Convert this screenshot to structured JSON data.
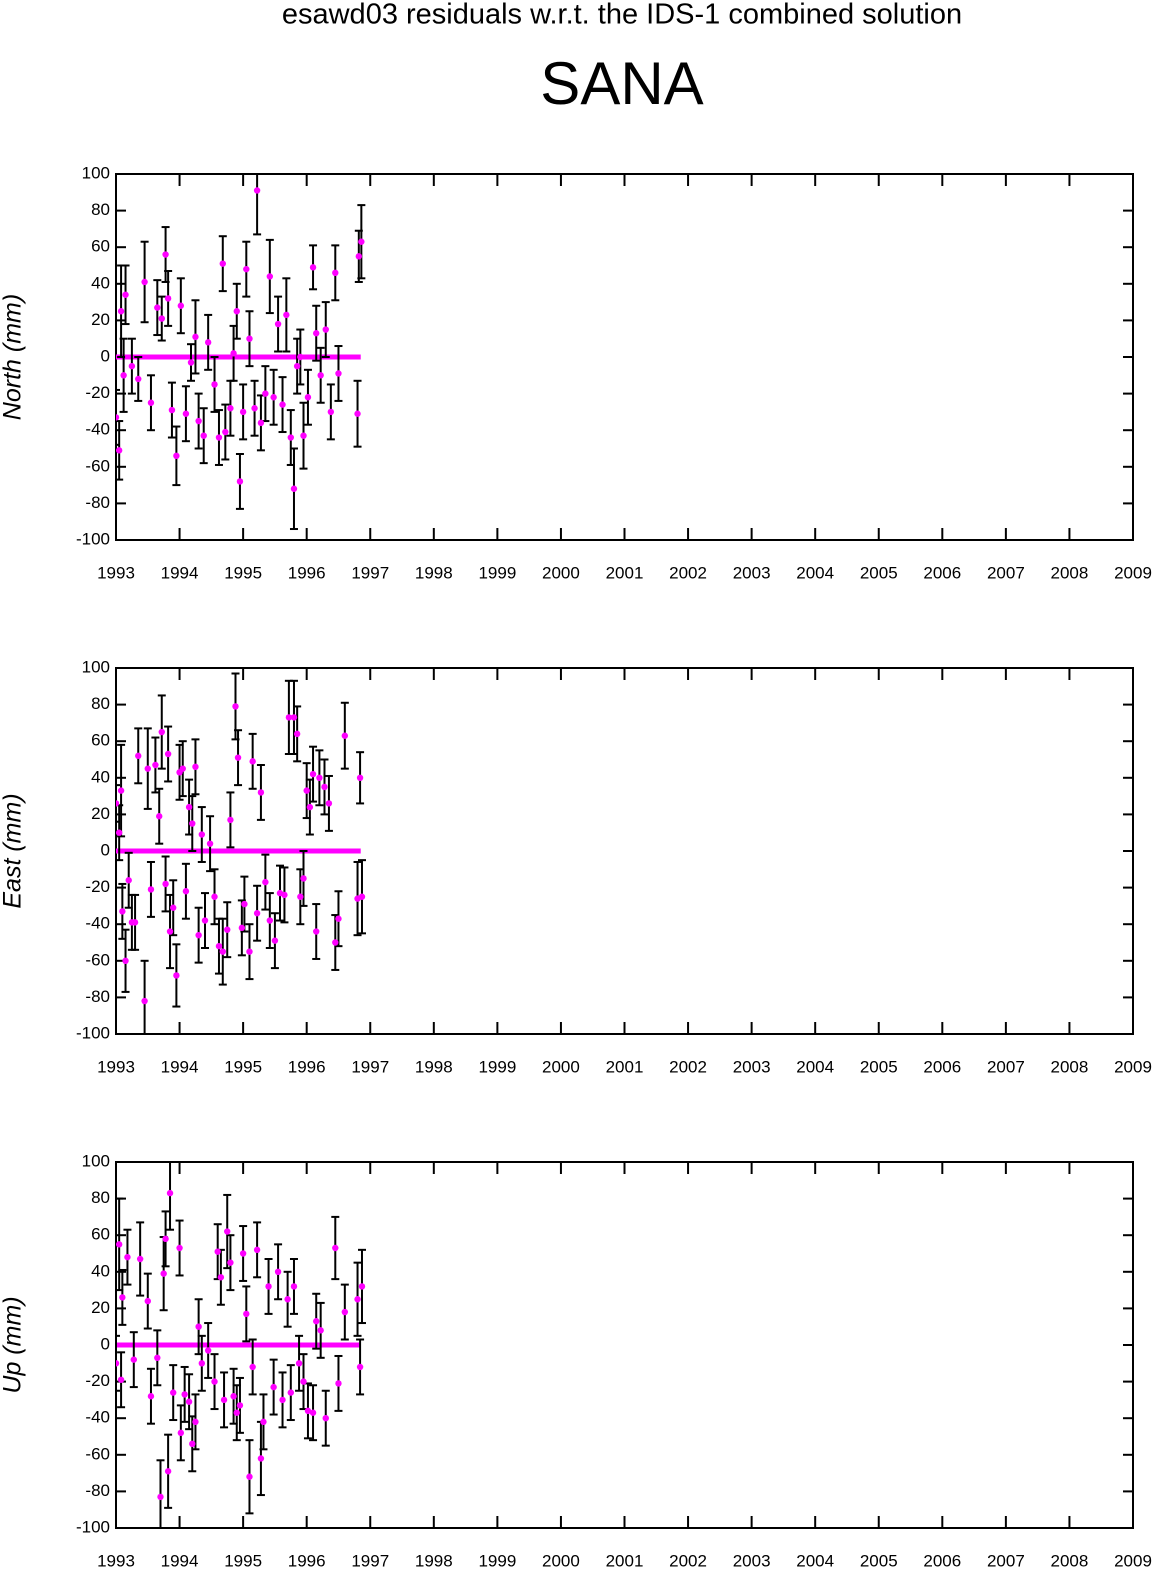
{
  "header": {
    "title": "esawd03 residuals w.r.t. the IDS-1 combined solution",
    "station": "SANA"
  },
  "chart_data": [
    {
      "type": "scatter",
      "ylabel": "North (mm)",
      "x": [
        1993.0,
        1993.05,
        1993.08,
        1993.12,
        1993.15,
        1993.25,
        1993.35,
        1993.45,
        1993.55,
        1993.65,
        1993.72,
        1993.78,
        1993.82,
        1993.88,
        1993.95,
        1994.02,
        1994.1,
        1994.18,
        1994.25,
        1994.3,
        1994.38,
        1994.45,
        1994.55,
        1994.62,
        1994.68,
        1994.72,
        1994.8,
        1994.85,
        1994.9,
        1994.95,
        1995.0,
        1995.05,
        1995.1,
        1995.18,
        1995.22,
        1995.28,
        1995.35,
        1995.42,
        1995.48,
        1995.55,
        1995.62,
        1995.68,
        1995.75,
        1995.8,
        1995.85,
        1995.9,
        1995.95,
        1996.02,
        1996.1,
        1996.15,
        1996.22,
        1996.3,
        1996.38,
        1996.45,
        1996.5,
        1996.8,
        1996.82,
        1996.86
      ],
      "series": [
        {
          "color": "#ff00ff",
          "values": [
            -33,
            -51,
            25,
            -10,
            34,
            -5,
            -12,
            41,
            -25,
            27,
            21,
            56,
            32,
            -29,
            -54,
            28,
            -31,
            -3,
            11,
            -35,
            -43,
            8,
            -15,
            -44,
            51,
            -41,
            -28,
            2,
            25,
            -68,
            -30,
            48,
            10,
            -28,
            91,
            -36,
            -20,
            44,
            -22,
            18,
            -26,
            23,
            -44,
            -72,
            -5,
            0,
            -43,
            -22,
            49,
            13,
            -10,
            15,
            -30,
            46,
            -9,
            -31,
            55,
            63
          ],
          "errors": [
            15,
            16,
            25,
            20,
            16,
            15,
            12,
            22,
            15,
            15,
            12,
            15,
            15,
            15,
            16,
            15,
            15,
            10,
            20,
            15,
            15,
            15,
            15,
            15,
            15,
            15,
            15,
            15,
            15,
            15,
            15,
            15,
            15,
            15,
            24,
            15,
            15,
            20,
            15,
            15,
            15,
            20,
            15,
            22,
            15,
            15,
            18,
            15,
            12,
            15,
            15,
            15,
            15,
            15,
            15,
            18,
            14,
            20
          ]
        }
      ],
      "baseline": {
        "x": [
          1993.0,
          1996.85
        ],
        "values": [
          0,
          0
        ]
      },
      "xlim": [
        1993,
        2009
      ],
      "ylim": [
        -100,
        100
      ],
      "xticks": [
        1993,
        1994,
        1995,
        1996,
        1997,
        1998,
        1999,
        2000,
        2001,
        2002,
        2003,
        2004,
        2005,
        2006,
        2007,
        2008,
        2009
      ],
      "yticks": [
        -100,
        -80,
        -60,
        -40,
        -20,
        0,
        20,
        40,
        60,
        80,
        100
      ]
    },
    {
      "type": "scatter",
      "ylabel": "East (mm)",
      "x": [
        1993.0,
        1993.05,
        1993.08,
        1993.1,
        1993.15,
        1993.2,
        1993.25,
        1993.3,
        1993.35,
        1993.45,
        1993.5,
        1993.55,
        1993.62,
        1993.68,
        1993.72,
        1993.78,
        1993.82,
        1993.85,
        1993.9,
        1993.95,
        1994.0,
        1994.05,
        1994.1,
        1994.15,
        1994.2,
        1994.25,
        1994.3,
        1994.35,
        1994.4,
        1994.48,
        1994.55,
        1994.62,
        1994.68,
        1994.75,
        1994.8,
        1994.88,
        1994.92,
        1994.98,
        1995.02,
        1995.1,
        1995.15,
        1995.22,
        1995.28,
        1995.35,
        1995.42,
        1995.5,
        1995.58,
        1995.65,
        1995.72,
        1995.8,
        1995.85,
        1995.9,
        1995.95,
        1996.0,
        1996.05,
        1996.1,
        1996.15,
        1996.2,
        1996.28,
        1996.35,
        1996.45,
        1996.5,
        1996.6,
        1996.8,
        1996.84,
        1996.87
      ],
      "series": [
        {
          "color": "#ff00ff",
          "values": [
            26,
            10,
            33,
            -33,
            -60,
            -16,
            -39,
            -39,
            52,
            -82,
            45,
            -21,
            47,
            19,
            65,
            -18,
            53,
            -44,
            -31,
            -68,
            43,
            45,
            -22,
            24,
            15,
            46,
            -46,
            9,
            -38,
            4,
            -25,
            -52,
            -55,
            -43,
            17,
            79,
            51,
            -42,
            -29,
            -55,
            49,
            -34,
            32,
            -17,
            -38,
            -49,
            -23,
            -24,
            73,
            73,
            64,
            -25,
            -15,
            33,
            24,
            42,
            -44,
            40,
            35,
            26,
            -50,
            -37,
            63,
            -26,
            40,
            -25
          ],
          "errors": [
            10,
            15,
            25,
            15,
            17,
            15,
            15,
            15,
            15,
            22,
            22,
            15,
            15,
            15,
            20,
            15,
            15,
            20,
            15,
            17,
            15,
            15,
            15,
            15,
            15,
            15,
            15,
            15,
            15,
            15,
            15,
            15,
            18,
            15,
            15,
            18,
            15,
            15,
            15,
            15,
            15,
            15,
            15,
            15,
            15,
            15,
            15,
            15,
            20,
            20,
            15,
            15,
            15,
            15,
            15,
            15,
            15,
            15,
            15,
            15,
            15,
            15,
            18,
            20,
            14,
            20
          ]
        }
      ],
      "baseline": {
        "x": [
          1993.0,
          1996.85
        ],
        "values": [
          0,
          0
        ]
      },
      "xlim": [
        1993,
        2009
      ],
      "ylim": [
        -100,
        100
      ],
      "xticks": [
        1993,
        1994,
        1995,
        1996,
        1997,
        1998,
        1999,
        2000,
        2001,
        2002,
        2003,
        2004,
        2005,
        2006,
        2007,
        2008,
        2009
      ],
      "yticks": [
        -100,
        -80,
        -60,
        -40,
        -20,
        0,
        20,
        40,
        60,
        80,
        100
      ]
    },
    {
      "type": "scatter",
      "ylabel": "Up (mm)",
      "x": [
        1993.0,
        1993.05,
        1993.08,
        1993.1,
        1993.18,
        1993.28,
        1993.38,
        1993.5,
        1993.55,
        1993.65,
        1993.7,
        1993.75,
        1993.78,
        1993.82,
        1993.85,
        1993.9,
        1994.0,
        1994.02,
        1994.08,
        1994.15,
        1994.2,
        1994.25,
        1994.3,
        1994.35,
        1994.45,
        1994.55,
        1994.6,
        1994.65,
        1994.7,
        1994.75,
        1994.8,
        1994.85,
        1994.9,
        1994.95,
        1995.0,
        1995.05,
        1995.1,
        1995.15,
        1995.22,
        1995.28,
        1995.32,
        1995.4,
        1995.48,
        1995.55,
        1995.62,
        1995.7,
        1995.75,
        1995.8,
        1995.88,
        1995.95,
        1996.02,
        1996.1,
        1996.15,
        1996.22,
        1996.3,
        1996.45,
        1996.5,
        1996.6,
        1996.8,
        1996.84,
        1996.87
      ],
      "series": [
        {
          "color": "#ff00ff",
          "values": [
            -10,
            55,
            -19,
            26,
            48,
            -8,
            47,
            24,
            -28,
            -7,
            -83,
            39,
            58,
            -69,
            83,
            -26,
            53,
            -48,
            -27,
            -31,
            -54,
            -42,
            10,
            -10,
            -3,
            -20,
            51,
            37,
            -30,
            62,
            45,
            -28,
            -37,
            -33,
            50,
            17,
            -72,
            -12,
            52,
            -62,
            -42,
            32,
            -23,
            40,
            -30,
            25,
            -26,
            32,
            -10,
            -20,
            -36,
            -37,
            13,
            8,
            -40,
            53,
            -21,
            18,
            25,
            -12,
            32
          ],
          "errors": [
            15,
            25,
            15,
            15,
            15,
            15,
            20,
            15,
            15,
            15,
            20,
            20,
            15,
            20,
            20,
            15,
            15,
            15,
            15,
            15,
            15,
            15,
            15,
            15,
            15,
            15,
            15,
            15,
            15,
            20,
            15,
            15,
            15,
            15,
            15,
            15,
            20,
            15,
            15,
            20,
            15,
            15,
            15,
            15,
            15,
            15,
            15,
            15,
            15,
            15,
            15,
            15,
            15,
            15,
            15,
            17,
            15,
            15,
            20,
            15,
            20
          ]
        }
      ],
      "baseline": {
        "x": [
          1993.0,
          1996.85
        ],
        "values": [
          0,
          0
        ]
      },
      "xlim": [
        1993,
        2009
      ],
      "ylim": [
        -100,
        100
      ],
      "xticks": [
        1993,
        1994,
        1995,
        1996,
        1997,
        1998,
        1999,
        2000,
        2001,
        2002,
        2003,
        2004,
        2005,
        2006,
        2007,
        2008,
        2009
      ],
      "yticks": [
        -100,
        -80,
        -60,
        -40,
        -20,
        0,
        20,
        40,
        60,
        80,
        100
      ]
    }
  ]
}
